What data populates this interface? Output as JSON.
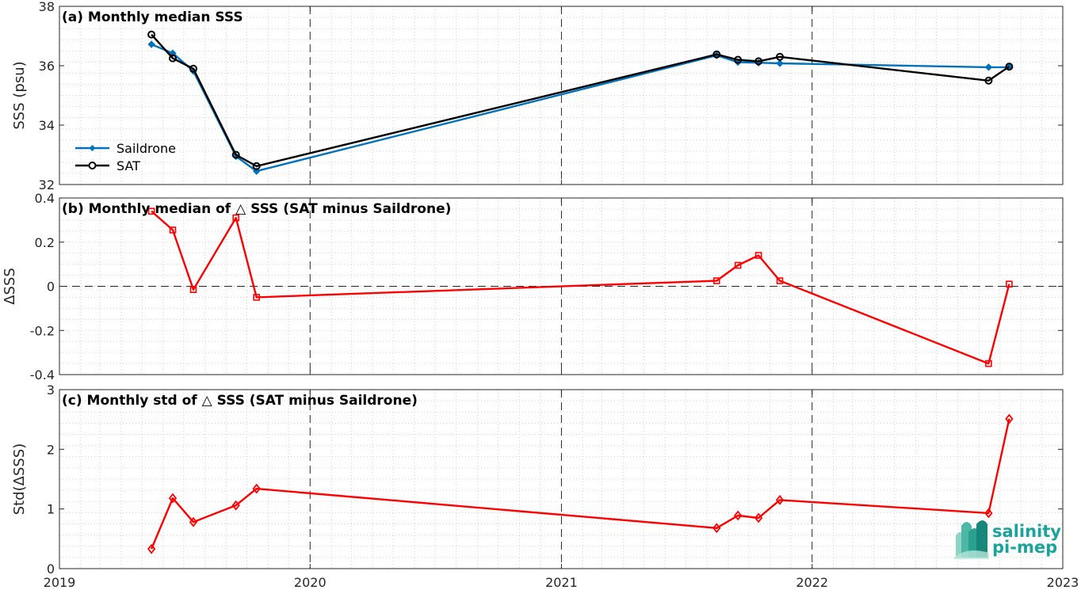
{
  "chart_data": [
    {
      "type": "line",
      "title": "(a) Monthly median SSS",
      "ylabel": "SSS (psu)",
      "ylim": [
        32,
        38
      ],
      "yticks": [
        "32",
        "34",
        "36",
        "38"
      ],
      "xlim": [
        "2019-01-01",
        "2023-01-01"
      ],
      "xticks": [
        "2019",
        "2020",
        "2021",
        "2022",
        "2023"
      ],
      "grid": "minor dotted",
      "legend_position": "lower-left",
      "series": [
        {
          "name": "Saildrone",
          "color": "#0072bd",
          "marker": "filled-diamond",
          "x": [
            "2019-05-15",
            "2019-06-15",
            "2019-07-15",
            "2019-09-15",
            "2019-10-15",
            "2021-08-15",
            "2021-09-15",
            "2021-10-15",
            "2021-11-15",
            "2022-09-15",
            "2022-10-15"
          ],
          "y": [
            36.72,
            36.42,
            35.82,
            32.95,
            32.45,
            36.35,
            36.12,
            36.1,
            36.08,
            35.95,
            35.95
          ]
        },
        {
          "name": "SAT",
          "color": "#000000",
          "marker": "open-circle",
          "x": [
            "2019-05-15",
            "2019-06-15",
            "2019-07-15",
            "2019-09-15",
            "2019-10-15",
            "2021-08-15",
            "2021-09-15",
            "2021-10-15",
            "2021-11-15",
            "2022-09-15",
            "2022-10-15"
          ],
          "y": [
            37.05,
            36.25,
            35.9,
            33.0,
            32.62,
            36.38,
            36.2,
            36.15,
            36.3,
            35.5,
            35.97
          ]
        }
      ]
    },
    {
      "type": "line",
      "title": "(b) Monthly median of △ SSS (SAT minus Saildrone)",
      "ylabel": "ΔSSS",
      "ylim": [
        -0.4,
        0.4
      ],
      "yticks": [
        "-0.4",
        "-0.2",
        "0",
        "0.2",
        "0.4"
      ],
      "xlim": [
        "2019-01-01",
        "2023-01-01"
      ],
      "xticks": [
        "2019",
        "2020",
        "2021",
        "2022",
        "2023"
      ],
      "zero_line": true,
      "series": [
        {
          "color": "#ff0000",
          "marker": "open-square",
          "x": [
            "2019-05-15",
            "2019-06-15",
            "2019-07-15",
            "2019-09-15",
            "2019-10-15",
            "2021-08-15",
            "2021-09-15",
            "2021-10-15",
            "2021-11-15",
            "2022-09-15",
            "2022-10-15"
          ],
          "y": [
            0.34,
            0.255,
            -0.015,
            0.31,
            -0.05,
            0.025,
            0.095,
            0.14,
            0.025,
            -0.35,
            0.01
          ]
        }
      ]
    },
    {
      "type": "line",
      "title": "(c) Monthly std of △ SSS (SAT minus Saildrone)",
      "ylabel": "Std(ΔSSS)",
      "ylim": [
        0,
        3
      ],
      "yticks": [
        "0",
        "1",
        "2",
        "3"
      ],
      "xlim": [
        "2019-01-01",
        "2023-01-01"
      ],
      "xticks": [
        "2019",
        "2020",
        "2021",
        "2022",
        "2023"
      ],
      "series": [
        {
          "color": "#ff0000",
          "marker": "open-diamond",
          "x": [
            "2019-05-15",
            "2019-06-15",
            "2019-07-15",
            "2019-09-15",
            "2019-10-15",
            "2021-08-15",
            "2021-09-15",
            "2021-10-15",
            "2021-11-15",
            "2022-09-15",
            "2022-10-15"
          ],
          "y": [
            0.33,
            1.18,
            0.78,
            1.06,
            1.34,
            0.68,
            0.89,
            0.85,
            1.15,
            0.93,
            2.51
          ]
        }
      ]
    }
  ],
  "logo": {
    "line1": "salinity",
    "line2": "pi-mep",
    "color": "#1aa39a"
  }
}
